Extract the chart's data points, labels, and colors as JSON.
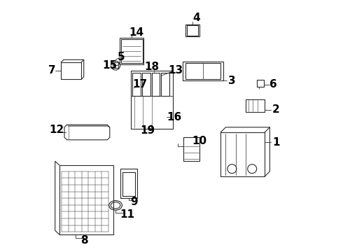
{
  "background_color": "#ffffff",
  "line_color": "#2a2a2a",
  "label_color": "#000000",
  "label_fontsize": 11,
  "label_fontweight": "bold",
  "figsize": [
    4.9,
    3.6
  ],
  "dpi": 100
}
